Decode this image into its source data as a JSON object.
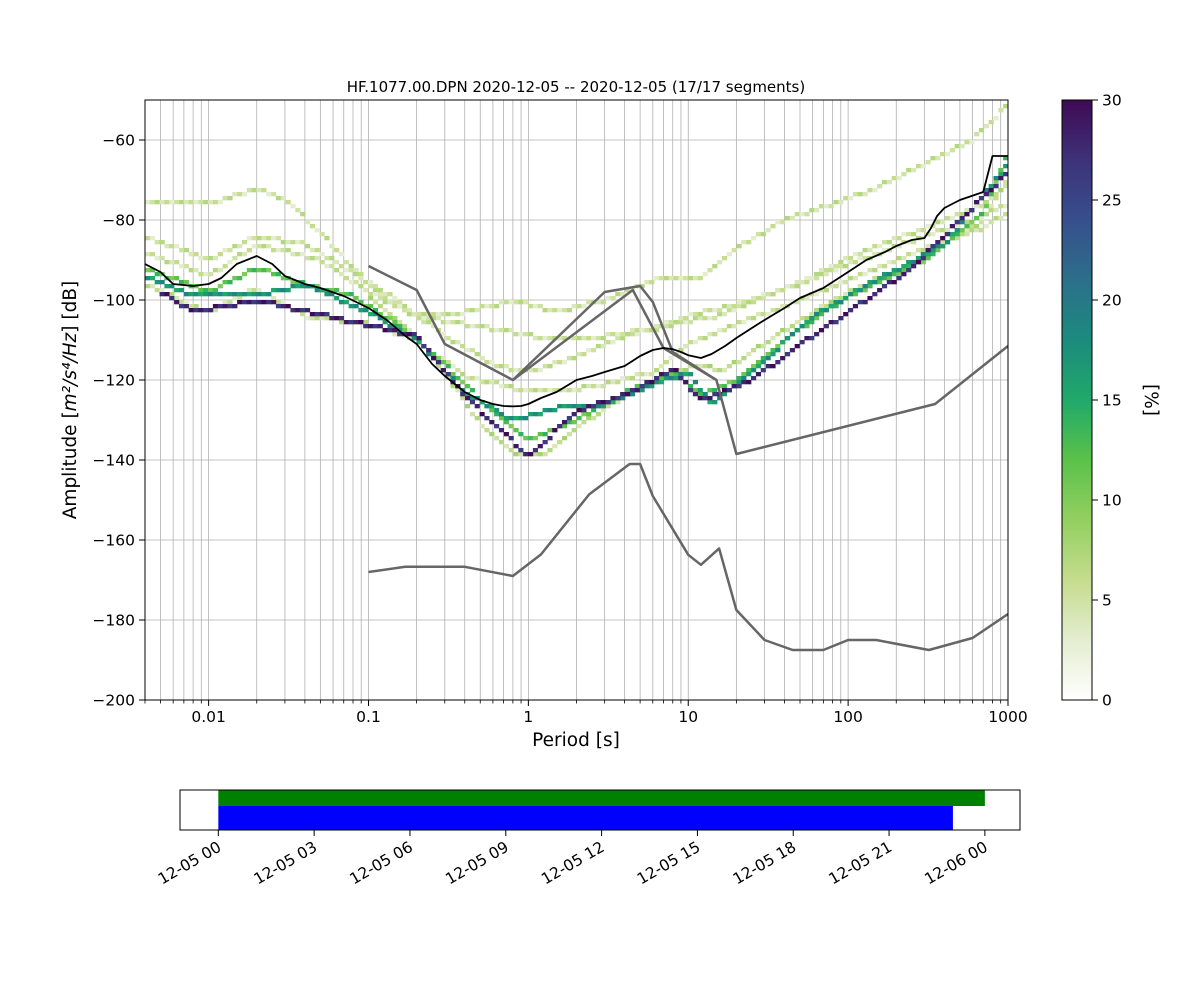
{
  "chart_data": [
    {
      "type": "heatmap",
      "title": "HF.1077.00.DPN   2020-12-05 -- 2020-12-05  (17/17 segments)",
      "xlabel": "Period [s]",
      "ylabel_main": "Amplitude [",
      "ylabel_math": "m²/s⁴/Hz",
      "ylabel_tail": "] [dB]",
      "x_scale": "log",
      "xlim": [
        0.004,
        1000
      ],
      "ylim": [
        -200,
        -50
      ],
      "grid": true,
      "x_ticks": [
        {
          "value": 0.01,
          "label": "0.01"
        },
        {
          "value": 0.1,
          "label": "0.1"
        },
        {
          "value": 1,
          "label": "1"
        },
        {
          "value": 10,
          "label": "10"
        },
        {
          "value": 100,
          "label": "100"
        },
        {
          "value": 1000,
          "label": "1000"
        }
      ],
      "y_ticks": [
        {
          "value": -60,
          "label": "−60"
        },
        {
          "value": -80,
          "label": "−80"
        },
        {
          "value": -100,
          "label": "−100"
        },
        {
          "value": -120,
          "label": "−120"
        },
        {
          "value": -140,
          "label": "−140"
        },
        {
          "value": -160,
          "label": "−160"
        },
        {
          "value": -180,
          "label": "−180"
        },
        {
          "value": -200,
          "label": "−200"
        }
      ],
      "colorbar": {
        "label": "[%]",
        "range": [
          0,
          30
        ],
        "ticks": [
          {
            "value": 0,
            "label": "0"
          },
          {
            "value": 5,
            "label": "5"
          },
          {
            "value": 10,
            "label": "10"
          },
          {
            "value": 15,
            "label": "15"
          },
          {
            "value": 20,
            "label": "20"
          },
          {
            "value": 25,
            "label": "25"
          },
          {
            "value": 30,
            "label": "30"
          }
        ],
        "colormap": [
          "#ffffff",
          "#e4edd0",
          "#c5dc8e",
          "#93cf60",
          "#5bc24a",
          "#20a96a",
          "#1c8b7d",
          "#2b6f8a",
          "#374f8c",
          "#3e3279",
          "#3f0a54"
        ]
      },
      "histogram_paths": [
        {
          "percent": 5,
          "points": [
            [
              0.004,
              -76
            ],
            [
              0.01,
              -76
            ],
            [
              0.02,
              -72
            ],
            [
              0.03,
              -75
            ],
            [
              0.05,
              -83
            ],
            [
              0.08,
              -92
            ],
            [
              0.12,
              -99
            ],
            [
              0.2,
              -104
            ],
            [
              0.4,
              -103
            ],
            [
              0.8,
              -100
            ],
            [
              1.5,
              -103
            ],
            [
              3,
              -100
            ],
            [
              6,
              -95
            ],
            [
              12,
              -94
            ],
            [
              20,
              -87
            ],
            [
              40,
              -80
            ],
            [
              80,
              -76
            ],
            [
              150,
              -72
            ],
            [
              300,
              -66
            ],
            [
              600,
              -60
            ],
            [
              1000,
              -51
            ]
          ]
        },
        {
          "percent": 5,
          "points": [
            [
              0.004,
              -84
            ],
            [
              0.01,
              -90
            ],
            [
              0.02,
              -84
            ],
            [
              0.04,
              -86
            ],
            [
              0.08,
              -93
            ],
            [
              0.15,
              -100
            ],
            [
              0.3,
              -109
            ],
            [
              0.6,
              -116
            ],
            [
              1,
              -118
            ],
            [
              2,
              -114
            ],
            [
              4,
              -109
            ],
            [
              8,
              -106
            ],
            [
              15,
              -104
            ],
            [
              30,
              -99
            ],
            [
              60,
              -94
            ],
            [
              120,
              -88
            ],
            [
              300,
              -82
            ],
            [
              700,
              -76
            ],
            [
              1000,
              -71
            ]
          ]
        },
        {
          "percent": 5,
          "points": [
            [
              0.004,
              -88
            ],
            [
              0.01,
              -94
            ],
            [
              0.02,
              -86
            ],
            [
              0.05,
              -90
            ],
            [
              0.1,
              -98
            ],
            [
              0.2,
              -104
            ],
            [
              0.4,
              -106
            ],
            [
              0.8,
              -108
            ],
            [
              1.5,
              -110
            ],
            [
              3,
              -109
            ],
            [
              6,
              -107
            ],
            [
              10,
              -104
            ],
            [
              20,
              -101
            ],
            [
              50,
              -96
            ],
            [
              100,
              -91
            ],
            [
              300,
              -84
            ],
            [
              600,
              -80
            ],
            [
              1000,
              -76
            ]
          ]
        },
        {
          "percent": 5,
          "points": [
            [
              0.004,
              -96
            ],
            [
              0.01,
              -103
            ],
            [
              0.02,
              -97
            ],
            [
              0.04,
              -104
            ],
            [
              0.1,
              -106
            ],
            [
              0.2,
              -110
            ],
            [
              0.4,
              -119
            ],
            [
              0.8,
              -122
            ],
            [
              1.5,
              -123
            ],
            [
              3,
              -121
            ],
            [
              6,
              -118
            ],
            [
              10,
              -111
            ],
            [
              20,
              -106
            ],
            [
              50,
              -100
            ],
            [
              100,
              -95
            ],
            [
              300,
              -87
            ],
            [
              700,
              -82
            ],
            [
              1000,
              -78
            ]
          ]
        },
        {
          "percent": 6,
          "points": [
            [
              0.1,
              -99
            ],
            [
              0.2,
              -109
            ],
            [
              0.35,
              -122
            ],
            [
              0.5,
              -131
            ],
            [
              0.8,
              -138
            ],
            [
              1.2,
              -139
            ],
            [
              2,
              -132
            ],
            [
              4,
              -124
            ],
            [
              8,
              -118
            ],
            [
              12,
              -116
            ],
            [
              16,
              -118
            ],
            [
              25,
              -113
            ],
            [
              50,
              -105
            ],
            [
              100,
              -98
            ],
            [
              300,
              -89
            ],
            [
              700,
              -80
            ],
            [
              1000,
              -70
            ]
          ]
        },
        {
          "percent": 12,
          "points": [
            [
              0.004,
              -92
            ],
            [
              0.01,
              -98
            ],
            [
              0.02,
              -92
            ],
            [
              0.04,
              -96
            ],
            [
              0.08,
              -99
            ],
            [
              0.15,
              -106
            ],
            [
              0.3,
              -116
            ],
            [
              0.6,
              -128
            ],
            [
              1,
              -135
            ],
            [
              2,
              -130
            ],
            [
              4,
              -123
            ],
            [
              8,
              -118
            ],
            [
              12,
              -124
            ],
            [
              20,
              -120
            ],
            [
              40,
              -110
            ],
            [
              100,
              -99
            ],
            [
              300,
              -90
            ],
            [
              700,
              -78
            ],
            [
              1000,
              -63
            ]
          ]
        },
        {
          "percent": 17,
          "points": [
            [
              0.004,
              -94
            ],
            [
              0.008,
              -99
            ],
            [
              0.02,
              -99
            ],
            [
              0.04,
              -96
            ],
            [
              0.1,
              -103
            ],
            [
              0.2,
              -110
            ],
            [
              0.4,
              -123
            ],
            [
              0.8,
              -130
            ],
            [
              1.5,
              -127
            ],
            [
              3,
              -126
            ],
            [
              6,
              -121
            ],
            [
              10,
              -118
            ],
            [
              14,
              -126
            ],
            [
              25,
              -118
            ],
            [
              60,
              -104
            ],
            [
              150,
              -95
            ],
            [
              400,
              -86
            ],
            [
              1000,
              -66
            ]
          ]
        },
        {
          "percent": 28,
          "points": [
            [
              0.005,
              -98
            ],
            [
              0.008,
              -103
            ],
            [
              0.02,
              -100
            ],
            [
              0.2,
              -109
            ],
            [
              0.4,
              -124
            ],
            [
              1,
              -139
            ],
            [
              2,
              -128
            ],
            [
              5,
              -122
            ],
            [
              8,
              -117
            ],
            [
              12,
              -125
            ],
            [
              25,
              -120
            ],
            [
              50,
              -111
            ],
            [
              100,
              -103
            ],
            [
              250,
              -92
            ],
            [
              1000,
              -68
            ]
          ]
        }
      ],
      "mean_curve": {
        "x": [
          0.004,
          0.005,
          0.006,
          0.008,
          0.01,
          0.012,
          0.015,
          0.02,
          0.025,
          0.03,
          0.04,
          0.05,
          0.07,
          0.1,
          0.13,
          0.17,
          0.2,
          0.25,
          0.3,
          0.4,
          0.5,
          0.6,
          0.7,
          0.8,
          0.9,
          1,
          1.2,
          1.5,
          2,
          2.5,
          3,
          4,
          5,
          6,
          7,
          8,
          9,
          10,
          12,
          14,
          17,
          20,
          25,
          30,
          40,
          50,
          70,
          100,
          130,
          170,
          200,
          250,
          300,
          330,
          360,
          400,
          500,
          700,
          800,
          1000
        ],
        "y": [
          -91,
          -93,
          -96,
          -96.5,
          -96,
          -94.5,
          -91,
          -89,
          -91,
          -94,
          -96,
          -97,
          -99,
          -102,
          -105,
          -109,
          -111,
          -116,
          -119,
          -123,
          -125,
          -126,
          -126.5,
          -126.6,
          -126.5,
          -126,
          -124.5,
          -123,
          -120,
          -119,
          -118,
          -116.5,
          -114,
          -112.5,
          -112,
          -112.3,
          -113,
          -113.8,
          -114.5,
          -113.5,
          -111.5,
          -109.5,
          -107,
          -105,
          -102,
          -99.5,
          -97,
          -93,
          -90,
          -88,
          -86.5,
          -85,
          -84.5,
          -82,
          -79,
          -77,
          -75,
          -73,
          -64,
          -64
        ]
      },
      "reference_curves": [
        {
          "x": [
            0.1,
            0.2,
            0.3,
            0.8,
            3,
            5,
            6,
            8,
            15,
            20,
            350,
            1000
          ],
          "y": [
            -91.5,
            -97.5,
            -111,
            -120,
            -98,
            -96.5,
            -100.5,
            -113,
            -120,
            -138.5,
            -126,
            -111.5
          ]
        },
        {
          "x": [
            0.1,
            0.17,
            0.4,
            0.8,
            1.2,
            2.4,
            4.3,
            5,
            6,
            10,
            12,
            15.6,
            20,
            30,
            45,
            70,
            100,
            150,
            320,
            600,
            1000
          ],
          "y": [
            -168,
            -166.7,
            -166.7,
            -169,
            -163.6,
            -148.6,
            -141,
            -141,
            -149,
            -163.7,
            -166.2,
            -162.1,
            -177.5,
            -185,
            -187.5,
            -187.5,
            -185,
            -185,
            -187.5,
            -184.5,
            -178.5
          ]
        },
        {
          "x": [
            0.8,
            4.5,
            7,
            15
          ],
          "y": [
            -120,
            -97.5,
            -112,
            -120
          ]
        }
      ]
    },
    {
      "type": "timeline",
      "x_ticks": [
        "12-05 00",
        "12-05 03",
        "12-05 06",
        "12-05 09",
        "12-05 12",
        "12-05 15",
        "12-05 18",
        "12-05 21",
        "12-06 00"
      ],
      "x_range_hours": [
        -1.2,
        25.1
      ],
      "bars": [
        {
          "color": "#008000",
          "start_hour": 0,
          "end_hour": 24
        },
        {
          "color": "#0000ff",
          "start_hour": 0,
          "end_hour": 23
        }
      ]
    }
  ]
}
